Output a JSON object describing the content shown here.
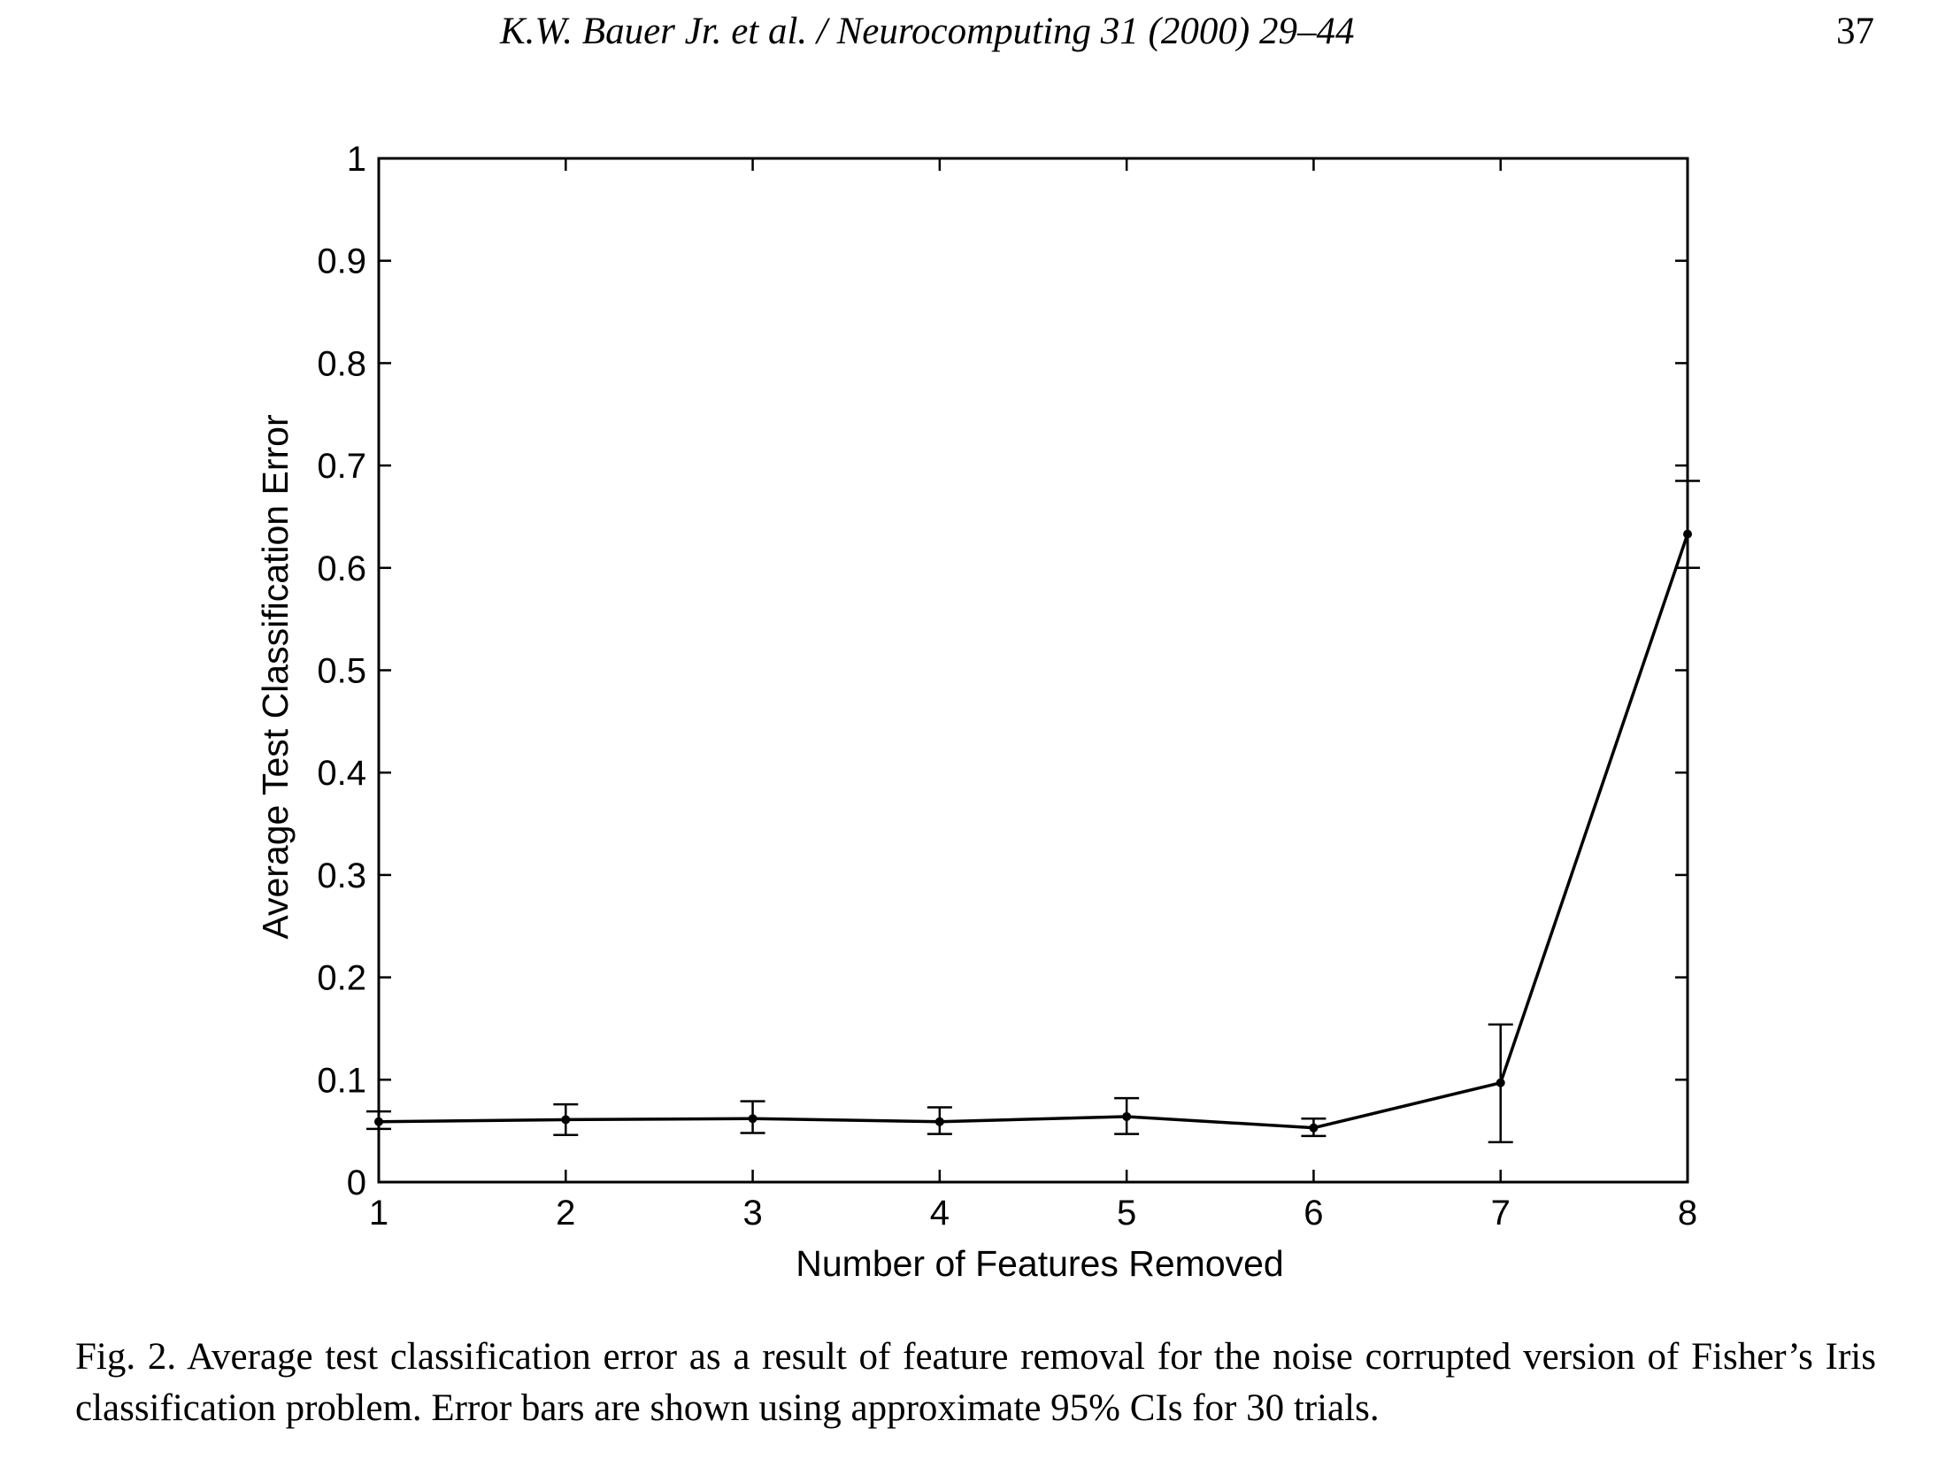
{
  "header": {
    "citation": "K.W. Bauer Jr. et al. / Neurocomputing 31 (2000) 29–44",
    "page_number": "37"
  },
  "caption": {
    "label": "Fig. 2.",
    "text": "Average test classification error as a result of feature removal for the noise corrupted version of Fisher’s Iris classification problem. Error bars are shown using approximate 95% CIs for 30 trials."
  },
  "chart_data": {
    "type": "line",
    "title": "",
    "xlabel": "Number of Features Removed",
    "ylabel": "Average Test Classification Error",
    "xlim": [
      1,
      8
    ],
    "ylim": [
      0,
      1
    ],
    "x_ticks": [
      1,
      2,
      3,
      4,
      5,
      6,
      7,
      8
    ],
    "x_tick_labels": [
      "1",
      "2",
      "3",
      "4",
      "5",
      "6",
      "7",
      "8"
    ],
    "y_ticks": [
      0,
      0.1,
      0.2,
      0.3,
      0.4,
      0.5,
      0.6,
      0.7,
      0.8,
      0.9,
      1
    ],
    "y_tick_labels": [
      "0",
      "0.1",
      "0.2",
      "0.3",
      "0.4",
      "0.5",
      "0.6",
      "0.7",
      "0.8",
      "0.9",
      "1"
    ],
    "grid": false,
    "legend": "none",
    "line_color": "#000000",
    "series": [
      {
        "x": [
          1,
          2,
          3,
          4,
          5,
          6,
          7,
          8
        ],
        "y": [
          0.059,
          0.061,
          0.062,
          0.059,
          0.064,
          0.053,
          0.097,
          0.633
        ],
        "error_low": [
          0.052,
          0.046,
          0.048,
          0.047,
          0.047,
          0.045,
          0.039,
          0.6
        ],
        "error_high": [
          0.069,
          0.076,
          0.079,
          0.073,
          0.082,
          0.062,
          0.154,
          0.685
        ]
      }
    ]
  }
}
